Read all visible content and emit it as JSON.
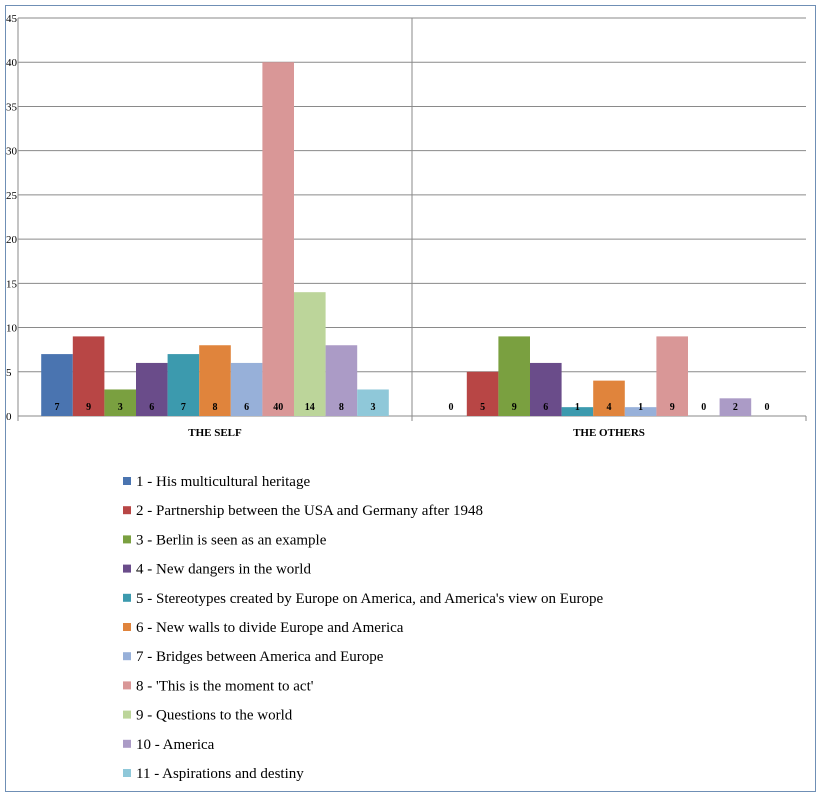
{
  "chart_data": {
    "type": "bar",
    "title": "",
    "xlabel": "",
    "ylabel": "",
    "ylim": [
      0,
      45
    ],
    "yticks": [
      0,
      5,
      10,
      15,
      20,
      25,
      30,
      35,
      40,
      45
    ],
    "grid": true,
    "legend_position": "bottom",
    "categories": [
      "THE SELF",
      "THE OTHERS"
    ],
    "series": [
      {
        "name": "1 - His multicultural heritage",
        "color": "#4a74b0",
        "values": [
          7,
          0
        ]
      },
      {
        "name": "2 - Partnership between the USA and Germany after 1948",
        "color": "#b84645",
        "values": [
          9,
          5
        ]
      },
      {
        "name": "3 - Berlin is seen as an example",
        "color": "#7aa040",
        "values": [
          3,
          9
        ]
      },
      {
        "name": "4 - New dangers in the world",
        "color": "#6a4c8a",
        "values": [
          6,
          6
        ]
      },
      {
        "name": "5 - Stereotypes created by Europe on America, and America's view on Europe",
        "color": "#3c9aae",
        "values": [
          7,
          1
        ]
      },
      {
        "name": "6 - New walls to divide Europe and America",
        "color": "#e0843c",
        "values": [
          8,
          4
        ]
      },
      {
        "name": "7 - Bridges between America and Europe",
        "color": "#97b0d9",
        "values": [
          6,
          1
        ]
      },
      {
        "name": "8 - 'This is the moment to act'",
        "color": "#d99797",
        "values": [
          40,
          9
        ]
      },
      {
        "name": "9 - Questions to the world",
        "color": "#bcd59a",
        "values": [
          14,
          0
        ]
      },
      {
        "name": "10 - America",
        "color": "#ab9bc6",
        "values": [
          8,
          2
        ]
      },
      {
        "name": "11 - Aspirations and destiny",
        "color": "#8fc8d9",
        "values": [
          3,
          0
        ]
      }
    ]
  }
}
